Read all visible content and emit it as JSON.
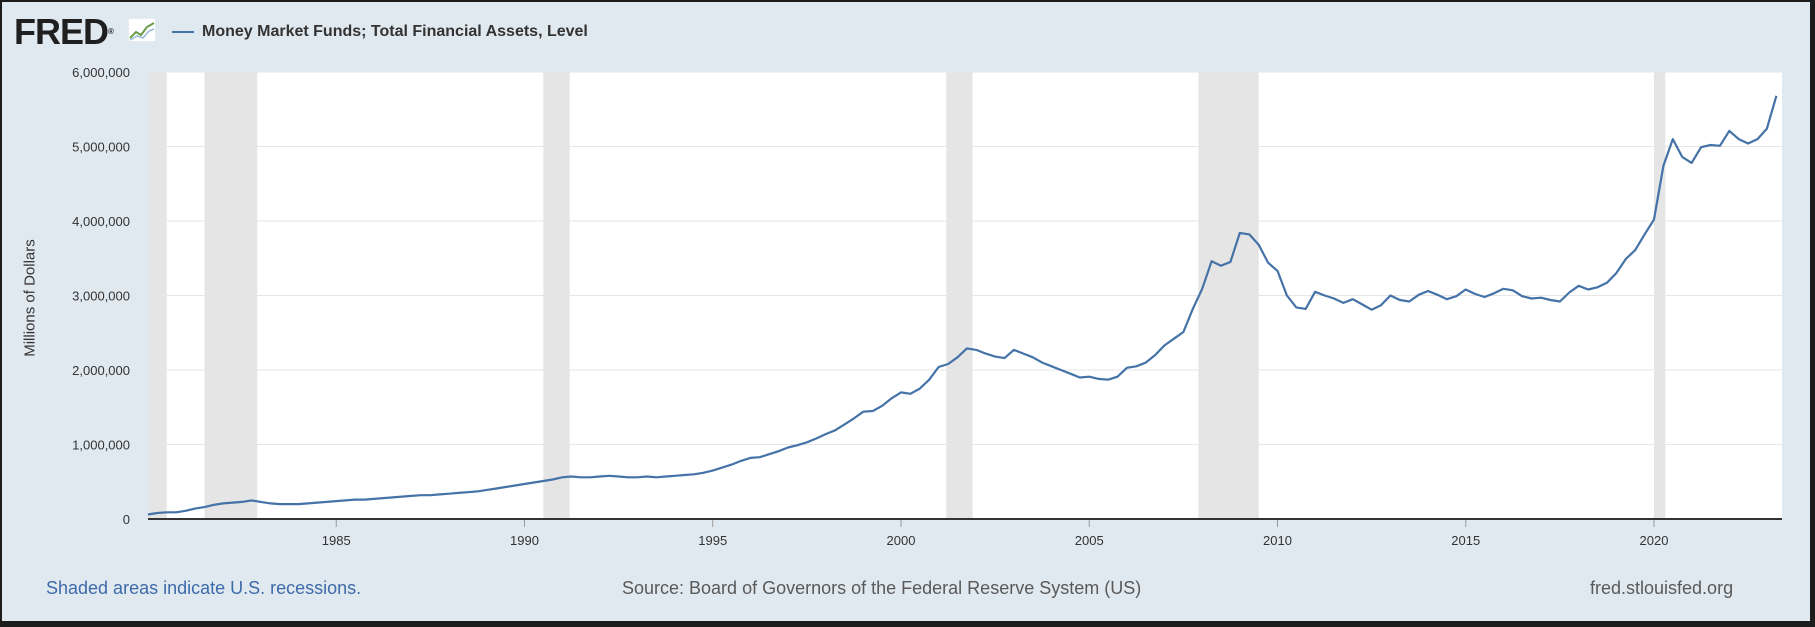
{
  "header": {
    "logo_text": "FRED",
    "logo_registered": "®",
    "legend_label": "Money Market Funds; Total Financial Assets, Level"
  },
  "footer": {
    "recessions_note": "Shaded areas indicate U.S. recessions.",
    "source": "Source: Board of Governors of the Federal Reserve System (US)",
    "site": "fred.stlouisfed.org"
  },
  "colors": {
    "line": "#4572a7",
    "recession": "#e5e5e5",
    "plot_background": "#ffffff",
    "page_background": "#e1e9f0",
    "grid": "#e6e6e6"
  },
  "chart_data": {
    "type": "line",
    "title": "",
    "ylabel": "Millions of Dollars",
    "xlabel": "",
    "xlim": [
      1980.0,
      2023.4
    ],
    "ylim": [
      0,
      6000000
    ],
    "x_ticks": [
      1985,
      1990,
      1995,
      2000,
      2005,
      2010,
      2015,
      2020
    ],
    "x_tick_labels": [
      "1985",
      "1990",
      "1995",
      "2000",
      "2005",
      "2010",
      "2015",
      "2020"
    ],
    "y_ticks": [
      0,
      1000000,
      2000000,
      3000000,
      4000000,
      5000000,
      6000000
    ],
    "y_tick_labels": [
      "0",
      "1,000,000",
      "2,000,000",
      "3,000,000",
      "4,000,000",
      "5,000,000",
      "6,000,000"
    ],
    "grid": true,
    "legend_position": "top-left",
    "recessions": [
      [
        1980.0,
        1980.5
      ],
      [
        1981.5,
        1982.9
      ],
      [
        1990.5,
        1991.2
      ],
      [
        2001.2,
        2001.9
      ],
      [
        2007.9,
        2009.5
      ],
      [
        2020.0,
        2020.3
      ]
    ],
    "series": [
      {
        "name": "Money Market Funds; Total Financial Assets, Level",
        "x": [
          1980.0,
          1980.25,
          1980.5,
          1980.75,
          1981.0,
          1981.25,
          1981.5,
          1981.75,
          1982.0,
          1982.25,
          1982.5,
          1982.75,
          1983.0,
          1983.25,
          1983.5,
          1983.75,
          1984.0,
          1984.25,
          1984.5,
          1984.75,
          1985.0,
          1985.25,
          1985.5,
          1985.75,
          1986.0,
          1986.25,
          1986.5,
          1986.75,
          1987.0,
          1987.25,
          1987.5,
          1987.75,
          1988.0,
          1988.25,
          1988.5,
          1988.75,
          1989.0,
          1989.25,
          1989.5,
          1989.75,
          1990.0,
          1990.25,
          1990.5,
          1990.75,
          1991.0,
          1991.25,
          1991.5,
          1991.75,
          1992.0,
          1992.25,
          1992.5,
          1992.75,
          1993.0,
          1993.25,
          1993.5,
          1993.75,
          1994.0,
          1994.25,
          1994.5,
          1994.75,
          1995.0,
          1995.25,
          1995.5,
          1995.75,
          1996.0,
          1996.25,
          1996.5,
          1996.75,
          1997.0,
          1997.25,
          1997.5,
          1997.75,
          1998.0,
          1998.25,
          1998.5,
          1998.75,
          1999.0,
          1999.25,
          1999.5,
          1999.75,
          2000.0,
          2000.25,
          2000.5,
          2000.75,
          2001.0,
          2001.25,
          2001.5,
          2001.75,
          2002.0,
          2002.25,
          2002.5,
          2002.75,
          2003.0,
          2003.25,
          2003.5,
          2003.75,
          2004.0,
          2004.25,
          2004.5,
          2004.75,
          2005.0,
          2005.25,
          2005.5,
          2005.75,
          2006.0,
          2006.25,
          2006.5,
          2006.75,
          2007.0,
          2007.25,
          2007.5,
          2007.75,
          2008.0,
          2008.25,
          2008.5,
          2008.75,
          2009.0,
          2009.25,
          2009.5,
          2009.75,
          2010.0,
          2010.25,
          2010.5,
          2010.75,
          2011.0,
          2011.25,
          2011.5,
          2011.75,
          2012.0,
          2012.25,
          2012.5,
          2012.75,
          2013.0,
          2013.25,
          2013.5,
          2013.75,
          2014.0,
          2014.25,
          2014.5,
          2014.75,
          2015.0,
          2015.25,
          2015.5,
          2015.75,
          2016.0,
          2016.25,
          2016.5,
          2016.75,
          2017.0,
          2017.25,
          2017.5,
          2017.75,
          2018.0,
          2018.25,
          2018.5,
          2018.75,
          2019.0,
          2019.25,
          2019.5,
          2019.75,
          2020.0,
          2020.25,
          2020.5,
          2020.75,
          2021.0,
          2021.25,
          2021.5,
          2021.75,
          2022.0,
          2022.25,
          2022.5,
          2022.75,
          2023.0,
          2023.25
        ],
        "values": [
          60000,
          80000,
          90000,
          90000,
          110000,
          140000,
          160000,
          190000,
          210000,
          220000,
          230000,
          250000,
          230000,
          210000,
          200000,
          200000,
          200000,
          210000,
          220000,
          230000,
          240000,
          250000,
          260000,
          260000,
          270000,
          280000,
          290000,
          300000,
          310000,
          320000,
          320000,
          330000,
          340000,
          350000,
          360000,
          370000,
          390000,
          410000,
          430000,
          450000,
          470000,
          490000,
          510000,
          530000,
          560000,
          570000,
          560000,
          560000,
          570000,
          580000,
          570000,
          560000,
          560000,
          570000,
          560000,
          570000,
          580000,
          590000,
          600000,
          620000,
          650000,
          690000,
          730000,
          780000,
          820000,
          830000,
          870000,
          910000,
          960000,
          990000,
          1030000,
          1080000,
          1140000,
          1190000,
          1270000,
          1350000,
          1440000,
          1450000,
          1520000,
          1620000,
          1700000,
          1680000,
          1750000,
          1870000,
          2040000,
          2080000,
          2170000,
          2290000,
          2270000,
          2220000,
          2180000,
          2160000,
          2270000,
          2220000,
          2170000,
          2100000,
          2050000,
          2000000,
          1950000,
          1900000,
          1910000,
          1880000,
          1870000,
          1910000,
          2030000,
          2050000,
          2100000,
          2200000,
          2330000,
          2420000,
          2510000,
          2820000,
          3090000,
          3460000,
          3400000,
          3450000,
          3840000,
          3820000,
          3680000,
          3440000,
          3330000,
          3000000,
          2840000,
          2820000,
          3050000,
          3000000,
          2960000,
          2900000,
          2950000,
          2880000,
          2810000,
          2870000,
          3000000,
          2940000,
          2920000,
          3010000,
          3060000,
          3010000,
          2950000,
          2990000,
          3080000,
          3020000,
          2980000,
          3030000,
          3090000,
          3070000,
          2990000,
          2960000,
          2970000,
          2940000,
          2920000,
          3040000,
          3130000,
          3080000,
          3110000,
          3170000,
          3300000,
          3490000,
          3610000,
          3820000,
          4020000,
          4740000,
          5100000,
          4860000,
          4780000,
          4990000,
          5020000,
          5010000,
          5210000,
          5100000,
          5040000,
          5100000,
          5240000,
          5680000
        ]
      }
    ]
  }
}
